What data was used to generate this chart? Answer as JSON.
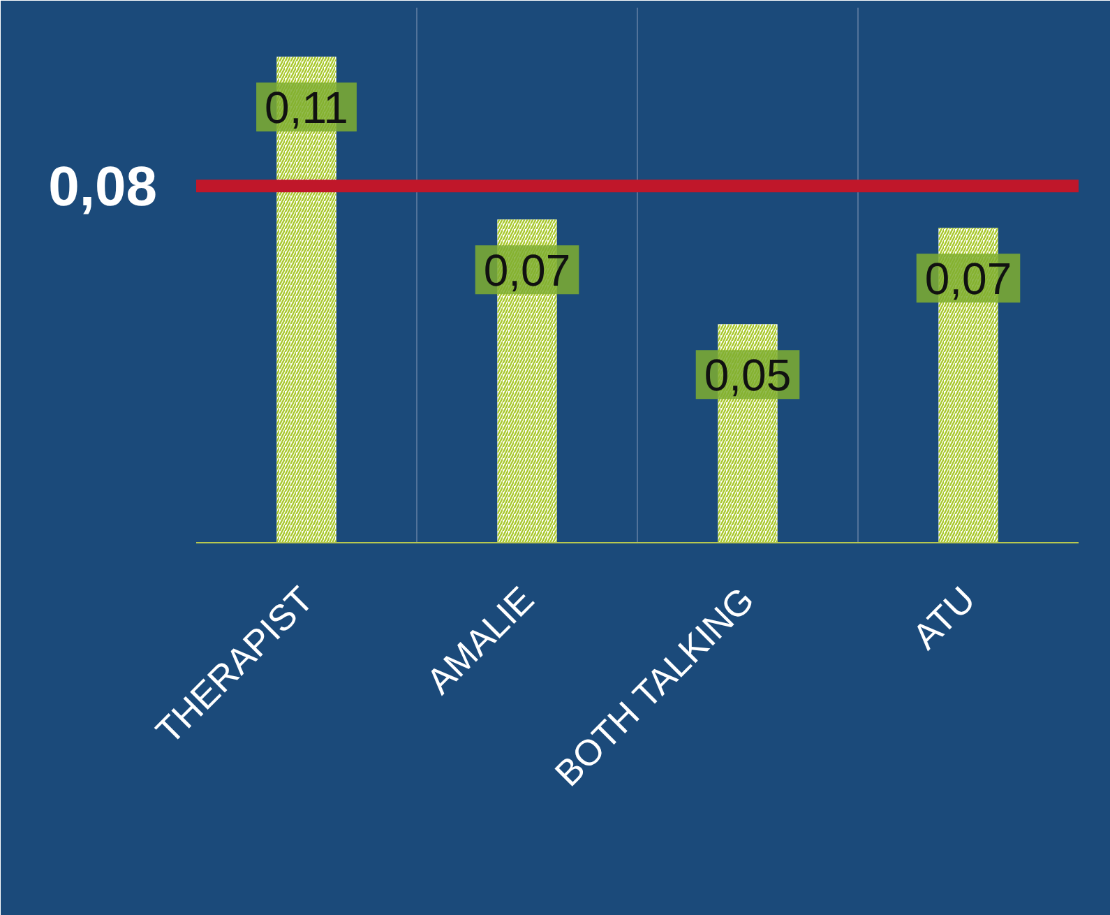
{
  "chart_data": {
    "type": "bar",
    "categories": [
      "THERAPIST",
      "AMALIE",
      "BOTH TALKING",
      "ATU"
    ],
    "values": [
      0.109,
      0.0725,
      0.049,
      0.0706
    ],
    "value_labels": [
      "0,11",
      "0,07",
      "0,05",
      "0,07"
    ],
    "color": "#ffffff",
    "ylim": [
      0,
      0.12
    ],
    "tick_labels": "x",
    "grid": "x",
    "ref_lines": [
      {
        "axis": "y",
        "value": 0.08,
        "label": "0,08",
        "color": "#c0172a"
      }
    ]
  }
}
